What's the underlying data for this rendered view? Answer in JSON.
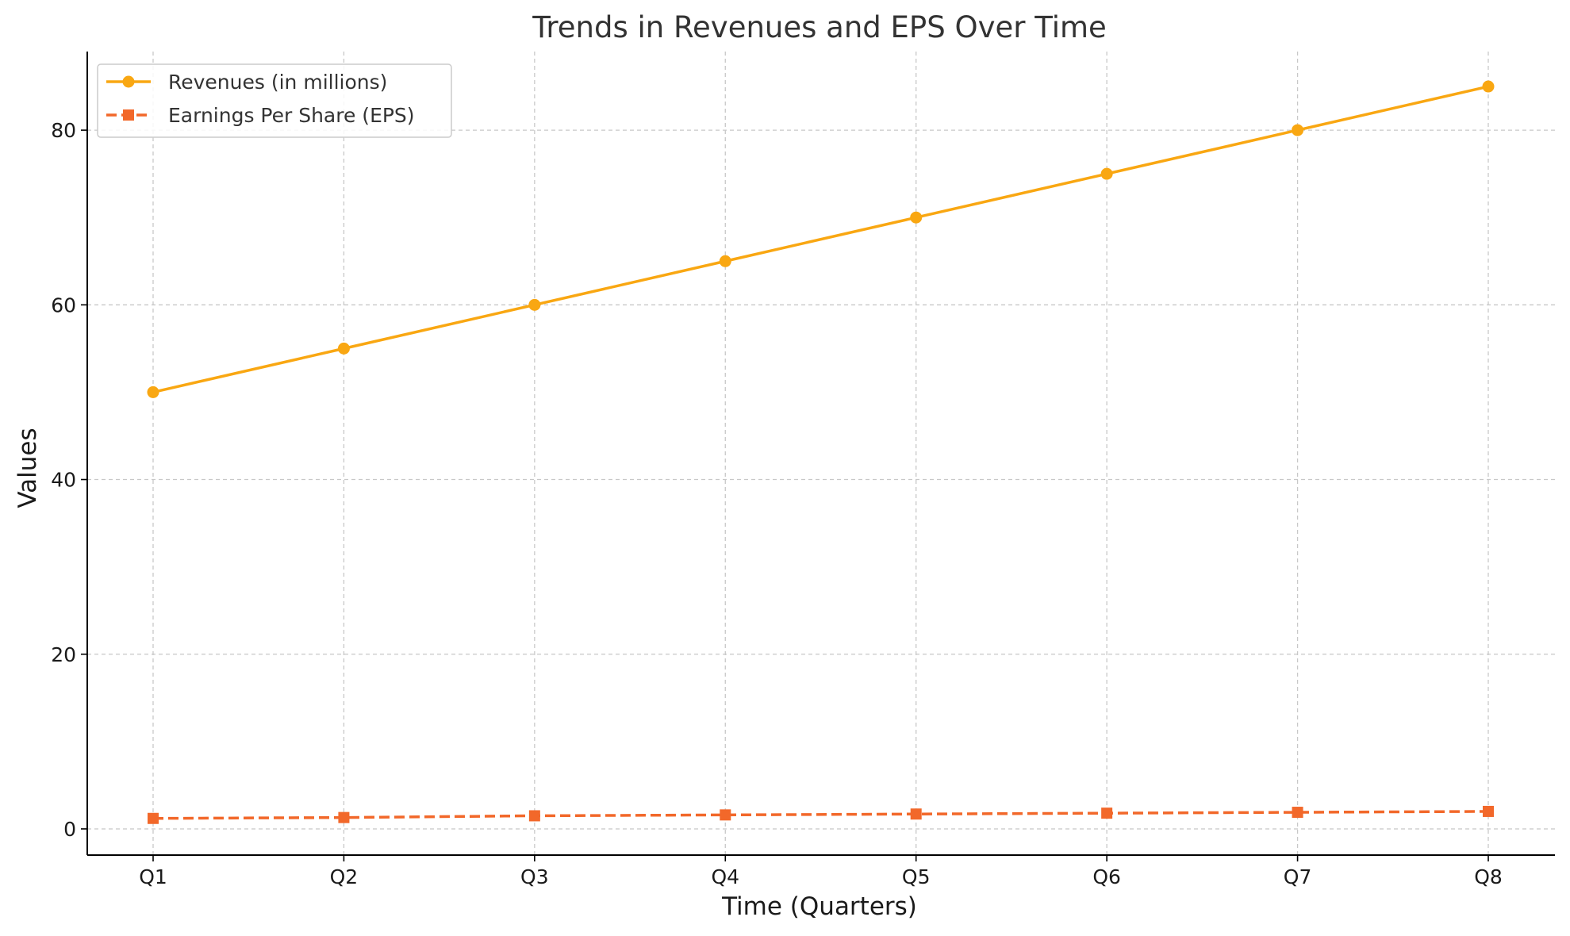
{
  "chart_data": {
    "type": "line",
    "title": "Trends in Revenues and EPS Over Time",
    "xlabel": "Time (Quarters)",
    "ylabel": "Values",
    "categories": [
      "Q1",
      "Q2",
      "Q3",
      "Q4",
      "Q5",
      "Q6",
      "Q7",
      "Q8"
    ],
    "ylim": [
      -3,
      89
    ],
    "yticks": [
      0,
      20,
      40,
      60,
      80
    ],
    "grid": true,
    "legend_position": "top-left",
    "series": [
      {
        "name": "Revenues (in millions)",
        "values": [
          50,
          55,
          60,
          65,
          70,
          75,
          80,
          85
        ],
        "color": "#f9a712",
        "line_style": "solid",
        "marker": "circle"
      },
      {
        "name": "Earnings Per Share (EPS)",
        "values": [
          1.2,
          1.3,
          1.5,
          1.6,
          1.7,
          1.8,
          1.9,
          2.0
        ],
        "color": "#f2682a",
        "line_style": "dashed",
        "marker": "square"
      }
    ]
  }
}
